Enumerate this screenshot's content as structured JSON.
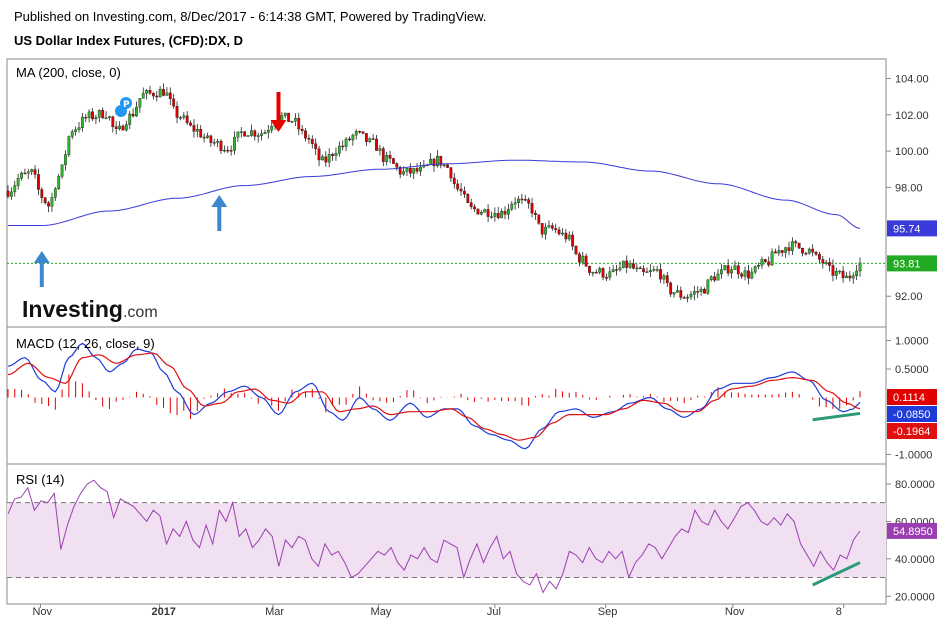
{
  "header": {
    "published": "Published on Investing.com, 8/Dec/2017 - 6:14:38 GMT, Powered by TradingView.",
    "symbol": "US Dollar Index Futures, (CFD):DX, D"
  },
  "colors": {
    "up_candle": "#2eb82e",
    "down_candle": "#e00000",
    "ma_line": "#3a3ad8",
    "macd_line": "#1f3bd8",
    "signal_line": "#e01010",
    "rsi_line": "#9b3fb0",
    "rsi_band": "#f1e0f1",
    "arrow_up": "#3d87cf",
    "arrow_down": "#e60000",
    "divergence": "#2a9a77",
    "last_price": "#22aa22"
  },
  "icons": [
    "arrow-up-icon",
    "arrow-down-icon",
    "pin-marker-icon"
  ],
  "logo": {
    "brand": "Investing",
    "suffix": ".com"
  },
  "x_axis": {
    "ticks": [
      "Nov",
      "2017",
      "Mar",
      "May",
      "Jul",
      "Sep",
      "Nov",
      "8"
    ]
  },
  "chart_data": [
    {
      "type": "candlestick",
      "title": "MA (200, close, 0)",
      "ylim": [
        90.8,
        104.8
      ],
      "y_ticks": [
        "104.00",
        "102.00",
        "100.00",
        "98.00",
        "92.00"
      ],
      "last_price": "93.81",
      "ma_value": "95.74",
      "anchors": [
        [
          0,
          97.8
        ],
        [
          8,
          98.6
        ],
        [
          14,
          98.8
        ],
        [
          20,
          97.5
        ],
        [
          24,
          97.0
        ],
        [
          30,
          98.6
        ],
        [
          38,
          101.2
        ],
        [
          48,
          101.9
        ],
        [
          58,
          102.1
        ],
        [
          64,
          101.0
        ],
        [
          72,
          101.9
        ],
        [
          80,
          103.1
        ],
        [
          92,
          103.3
        ],
        [
          100,
          102.0
        ],
        [
          110,
          101.2
        ],
        [
          120,
          100.5
        ],
        [
          130,
          100.2
        ],
        [
          140,
          101.1
        ],
        [
          150,
          101.0
        ],
        [
          160,
          101.9
        ],
        [
          168,
          101.7
        ],
        [
          176,
          100.8
        ],
        [
          186,
          99.4
        ],
        [
          196,
          100.2
        ],
        [
          206,
          100.9
        ],
        [
          216,
          100.4
        ],
        [
          224,
          99.5
        ],
        [
          234,
          98.8
        ],
        [
          244,
          98.9
        ],
        [
          254,
          99.5
        ],
        [
          260,
          99.1
        ],
        [
          266,
          97.9
        ],
        [
          274,
          96.8
        ],
        [
          282,
          96.7
        ],
        [
          292,
          96.6
        ],
        [
          300,
          97.3
        ],
        [
          308,
          97.0
        ],
        [
          316,
          95.6
        ],
        [
          322,
          95.7
        ],
        [
          330,
          95.3
        ],
        [
          338,
          94.1
        ],
        [
          346,
          93.4
        ],
        [
          356,
          93.2
        ],
        [
          366,
          93.7
        ],
        [
          376,
          93.2
        ],
        [
          384,
          93.4
        ],
        [
          392,
          92.3
        ],
        [
          400,
          92.0
        ],
        [
          410,
          92.3
        ],
        [
          418,
          93.1
        ],
        [
          428,
          93.6
        ],
        [
          438,
          93.2
        ],
        [
          448,
          93.8
        ],
        [
          456,
          94.5
        ],
        [
          462,
          94.8
        ],
        [
          472,
          94.6
        ],
        [
          480,
          94.0
        ],
        [
          488,
          93.3
        ],
        [
          496,
          93.0
        ],
        [
          504,
          93.81
        ]
      ],
      "ma_anchors": [
        [
          0,
          95.9
        ],
        [
          20,
          95.9
        ],
        [
          60,
          96.7
        ],
        [
          100,
          97.4
        ],
        [
          140,
          98.1
        ],
        [
          180,
          98.6
        ],
        [
          220,
          99.0
        ],
        [
          260,
          99.3
        ],
        [
          300,
          99.5
        ],
        [
          340,
          99.4
        ],
        [
          380,
          98.9
        ],
        [
          420,
          98.2
        ],
        [
          460,
          97.3
        ],
        [
          490,
          96.5
        ],
        [
          504,
          95.74
        ]
      ],
      "annotations": [
        {
          "type": "arrow-up",
          "index": 20
        },
        {
          "type": "arrow-up",
          "index": 125
        },
        {
          "type": "arrow-down",
          "index": 160
        }
      ]
    },
    {
      "type": "macd",
      "title": "MACD (12, 26, close, 9)",
      "ylim": [
        -1.08,
        1.15
      ],
      "y_ticks": [
        "1.0000",
        "0.5000",
        "-1.0000"
      ],
      "values": {
        "histogram": "0.1114",
        "macd": "-0.0850",
        "signal": "-0.1964"
      },
      "macd_anchors": [
        [
          0,
          0.55
        ],
        [
          10,
          0.7
        ],
        [
          20,
          0.3
        ],
        [
          28,
          0.1
        ],
        [
          36,
          0.7
        ],
        [
          44,
          0.95
        ],
        [
          52,
          0.7
        ],
        [
          60,
          0.45
        ],
        [
          68,
          0.6
        ],
        [
          76,
          0.85
        ],
        [
          84,
          0.8
        ],
        [
          92,
          0.45
        ],
        [
          100,
          0.1
        ],
        [
          110,
          -0.3
        ],
        [
          120,
          -0.1
        ],
        [
          130,
          0.1
        ],
        [
          140,
          0.2
        ],
        [
          150,
          0.0
        ],
        [
          160,
          -0.3
        ],
        [
          170,
          0.1
        ],
        [
          180,
          0.25
        ],
        [
          190,
          -0.25
        ],
        [
          198,
          -0.4
        ],
        [
          208,
          0.0
        ],
        [
          216,
          -0.2
        ],
        [
          226,
          -0.4
        ],
        [
          238,
          -0.1
        ],
        [
          248,
          -0.35
        ],
        [
          258,
          -0.2
        ],
        [
          266,
          -0.2
        ],
        [
          276,
          -0.5
        ],
        [
          286,
          -0.65
        ],
        [
          296,
          -0.75
        ],
        [
          306,
          -0.9
        ],
        [
          316,
          -0.55
        ],
        [
          326,
          -0.25
        ],
        [
          336,
          -0.2
        ],
        [
          346,
          -0.35
        ],
        [
          358,
          -0.25
        ],
        [
          368,
          -0.1
        ],
        [
          380,
          0.0
        ],
        [
          390,
          -0.2
        ],
        [
          400,
          -0.35
        ],
        [
          410,
          -0.2
        ],
        [
          420,
          0.15
        ],
        [
          430,
          0.25
        ],
        [
          440,
          0.25
        ],
        [
          452,
          0.35
        ],
        [
          464,
          0.45
        ],
        [
          474,
          0.3
        ],
        [
          484,
          -0.05
        ],
        [
          494,
          -0.25
        ],
        [
          500,
          -0.2
        ],
        [
          504,
          -0.085
        ]
      ],
      "signal_anchors": [
        [
          0,
          0.4
        ],
        [
          12,
          0.6
        ],
        [
          24,
          0.35
        ],
        [
          34,
          0.25
        ],
        [
          44,
          0.7
        ],
        [
          54,
          0.75
        ],
        [
          64,
          0.6
        ],
        [
          76,
          0.75
        ],
        [
          86,
          0.78
        ],
        [
          96,
          0.55
        ],
        [
          106,
          0.15
        ],
        [
          116,
          -0.15
        ],
        [
          126,
          -0.1
        ],
        [
          136,
          0.1
        ],
        [
          146,
          0.15
        ],
        [
          156,
          -0.05
        ],
        [
          166,
          -0.1
        ],
        [
          176,
          0.1
        ],
        [
          186,
          0.1
        ],
        [
          196,
          -0.25
        ],
        [
          206,
          -0.2
        ],
        [
          216,
          -0.15
        ],
        [
          226,
          -0.3
        ],
        [
          238,
          -0.25
        ],
        [
          250,
          -0.25
        ],
        [
          262,
          -0.2
        ],
        [
          272,
          -0.35
        ],
        [
          282,
          -0.55
        ],
        [
          292,
          -0.65
        ],
        [
          302,
          -0.75
        ],
        [
          312,
          -0.7
        ],
        [
          322,
          -0.45
        ],
        [
          332,
          -0.3
        ],
        [
          342,
          -0.3
        ],
        [
          354,
          -0.3
        ],
        [
          364,
          -0.2
        ],
        [
          376,
          -0.05
        ],
        [
          388,
          -0.1
        ],
        [
          398,
          -0.25
        ],
        [
          408,
          -0.25
        ],
        [
          418,
          -0.05
        ],
        [
          428,
          0.15
        ],
        [
          440,
          0.2
        ],
        [
          452,
          0.3
        ],
        [
          464,
          0.35
        ],
        [
          476,
          0.3
        ],
        [
          486,
          0.1
        ],
        [
          496,
          -0.1
        ],
        [
          504,
          -0.1964
        ]
      ],
      "divergence_line": {
        "from": [
          476,
          -0.39
        ],
        "to": [
          504,
          -0.28
        ]
      }
    },
    {
      "type": "line",
      "title": "RSI (14)",
      "ylim": [
        18,
        88
      ],
      "y_ticks": [
        "80.0000",
        "60.0000",
        "40.0000",
        "20.0000"
      ],
      "band": [
        30,
        70
      ],
      "last_value": "54.8950",
      "values": [
        64,
        72,
        73,
        78,
        66,
        71,
        70,
        75,
        45,
        58,
        68,
        75,
        80,
        82,
        78,
        76,
        62,
        72,
        70,
        68,
        64,
        60,
        66,
        63,
        48,
        56,
        52,
        60,
        50,
        46,
        58,
        48,
        66,
        60,
        70,
        52,
        56,
        46,
        50,
        56,
        52,
        36,
        50,
        46,
        52,
        50,
        40,
        36,
        48,
        42,
        44,
        38,
        30,
        32,
        36,
        40,
        44,
        42,
        46,
        38,
        34,
        42,
        40,
        46,
        40,
        38,
        50,
        48,
        46,
        30,
        40,
        48,
        38,
        46,
        52,
        40,
        44,
        32,
        28,
        26,
        32,
        22,
        28,
        24,
        32,
        44,
        42,
        38,
        46,
        40,
        38,
        44,
        40,
        44,
        30,
        38,
        42,
        48,
        46,
        40,
        46,
        52,
        56,
        54,
        66,
        60,
        58,
        66,
        60,
        56,
        62,
        68,
        70,
        66,
        60,
        58,
        62,
        58,
        64,
        60,
        48,
        42,
        36,
        44,
        38,
        34,
        42,
        40,
        50,
        54.895
      ],
      "divergence_line": {
        "from": [
          476,
          26
        ],
        "to": [
          504,
          38
        ]
      }
    }
  ]
}
